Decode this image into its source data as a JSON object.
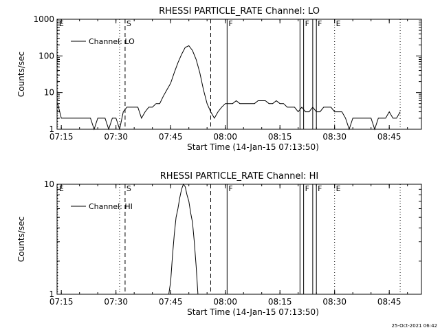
{
  "timestamp": "25-Oct-2021 06:42",
  "chart_data": [
    {
      "type": "line",
      "title": "RHESSI PARTICLE_RATE Channel: LO",
      "xlabel": "Start Time (14-Jan-15 07:13:50)",
      "ylabel": "Counts/sec",
      "yscale": "log",
      "ylim": [
        1,
        1000
      ],
      "ytick_labels": [
        "1",
        "10",
        "100",
        "1000"
      ],
      "xlim": [
        "07:13:50",
        "08:53:50"
      ],
      "xtick_labels": [
        "07:15",
        "07:30",
        "07:45",
        "08:00",
        "08:15",
        "08:30",
        "08:45"
      ],
      "legend": {
        "position": "top-left",
        "entries": [
          "Channel: LO"
        ]
      },
      "markers": [
        {
          "label": "E",
          "time": "07:14:00",
          "style": "dotted"
        },
        {
          "label": "",
          "time": "07:31:00",
          "style": "dotted"
        },
        {
          "label": "S",
          "time": "07:32:30",
          "style": "dashed"
        },
        {
          "label": "",
          "time": "07:56:00",
          "style": "dashed"
        },
        {
          "label": "F",
          "time": "08:00:30",
          "style": "solid"
        },
        {
          "label": "",
          "time": "08:20:30",
          "style": "solid"
        },
        {
          "label": "F",
          "time": "08:21:30",
          "style": "solid"
        },
        {
          "label": "",
          "time": "08:24:00",
          "style": "solid"
        },
        {
          "label": "F",
          "time": "08:25:00",
          "style": "solid"
        },
        {
          "label": "E",
          "time": "08:30:00",
          "style": "dotted"
        },
        {
          "label": "",
          "time": "08:48:00",
          "style": "dotted"
        }
      ],
      "series": [
        {
          "name": "Channel: LO",
          "x": [
            "07:14",
            "07:15",
            "07:16",
            "07:17",
            "07:18",
            "07:19",
            "07:20",
            "07:21",
            "07:22",
            "07:23",
            "07:24",
            "07:25",
            "07:26",
            "07:27",
            "07:28",
            "07:29",
            "07:30",
            "07:31",
            "07:32",
            "07:33",
            "07:34",
            "07:35",
            "07:36",
            "07:37",
            "07:38",
            "07:39",
            "07:40",
            "07:41",
            "07:42",
            "07:43",
            "07:44",
            "07:45",
            "07:46",
            "07:47",
            "07:48",
            "07:49",
            "07:50",
            "07:51",
            "07:52",
            "07:53",
            "07:54",
            "07:55",
            "07:56",
            "07:57",
            "07:58",
            "07:59",
            "08:00",
            "08:01",
            "08:02",
            "08:03",
            "08:04",
            "08:05",
            "08:06",
            "08:07",
            "08:08",
            "08:09",
            "08:10",
            "08:11",
            "08:12",
            "08:13",
            "08:14",
            "08:15",
            "08:16",
            "08:17",
            "08:18",
            "08:19",
            "08:20",
            "08:21",
            "08:22",
            "08:23",
            "08:24",
            "08:25",
            "08:26",
            "08:27",
            "08:28",
            "08:29",
            "08:30",
            "08:31",
            "08:32",
            "08:33",
            "08:34",
            "08:35",
            "08:36",
            "08:37",
            "08:38",
            "08:39",
            "08:40",
            "08:41",
            "08:42",
            "08:43",
            "08:44",
            "08:45",
            "08:46",
            "08:47",
            "08:48"
          ],
          "y": [
            5,
            2,
            2,
            2,
            2,
            2,
            2,
            2,
            2,
            2,
            1,
            2,
            2,
            2,
            1,
            2,
            2,
            1,
            3,
            4,
            4,
            4,
            4,
            2,
            3,
            4,
            4,
            5,
            5,
            8,
            12,
            18,
            35,
            65,
            110,
            170,
            190,
            140,
            80,
            35,
            12,
            5,
            3,
            2,
            3,
            4,
            5,
            5,
            5,
            6,
            5,
            5,
            5,
            5,
            5,
            6,
            6,
            6,
            5,
            5,
            6,
            5,
            5,
            4,
            4,
            4,
            3,
            4,
            3,
            3,
            4,
            3,
            3,
            4,
            4,
            4,
            3,
            3,
            3,
            2,
            1,
            2,
            2,
            2,
            2,
            2,
            2,
            1,
            2,
            2,
            2,
            3,
            2,
            2,
            3
          ]
        }
      ]
    },
    {
      "type": "line",
      "title": "RHESSI PARTICLE_RATE Channel: HI",
      "xlabel": "Start Time (14-Jan-15 07:13:50)",
      "ylabel": "Counts/sec",
      "yscale": "log",
      "ylim": [
        1,
        10
      ],
      "ytick_labels": [
        "1",
        "10"
      ],
      "xlim": [
        "07:13:50",
        "08:53:50"
      ],
      "xtick_labels": [
        "07:15",
        "07:30",
        "07:45",
        "08:00",
        "08:15",
        "08:30",
        "08:45"
      ],
      "legend": {
        "position": "top-left",
        "entries": [
          "Channel: HI"
        ]
      },
      "markers": [
        {
          "label": "E",
          "time": "07:14:00",
          "style": "dotted"
        },
        {
          "label": "",
          "time": "07:31:00",
          "style": "dotted"
        },
        {
          "label": "S",
          "time": "07:32:30",
          "style": "dashed"
        },
        {
          "label": "",
          "time": "07:56:00",
          "style": "dashed"
        },
        {
          "label": "F",
          "time": "08:00:30",
          "style": "solid"
        },
        {
          "label": "",
          "time": "08:20:30",
          "style": "solid"
        },
        {
          "label": "F",
          "time": "08:21:30",
          "style": "solid"
        },
        {
          "label": "",
          "time": "08:24:00",
          "style": "solid"
        },
        {
          "label": "F",
          "time": "08:25:00",
          "style": "solid"
        },
        {
          "label": "E",
          "time": "08:30:00",
          "style": "dotted"
        },
        {
          "label": "",
          "time": "08:48:00",
          "style": "dotted"
        }
      ],
      "series": [
        {
          "name": "Channel: HI",
          "x": [
            "07:44:30",
            "07:45",
            "07:45:30",
            "07:46",
            "07:46:30",
            "07:47",
            "07:47:30",
            "07:48",
            "07:48:30",
            "07:49",
            "07:49:30",
            "07:50",
            "07:50:30",
            "07:51",
            "07:51:30",
            "07:52",
            "07:52:30"
          ],
          "y": [
            1,
            1.3,
            2.2,
            3.5,
            5,
            6,
            7.5,
            9,
            10,
            9.5,
            8,
            7,
            5.5,
            4.5,
            3,
            1.8,
            1
          ]
        }
      ]
    }
  ]
}
